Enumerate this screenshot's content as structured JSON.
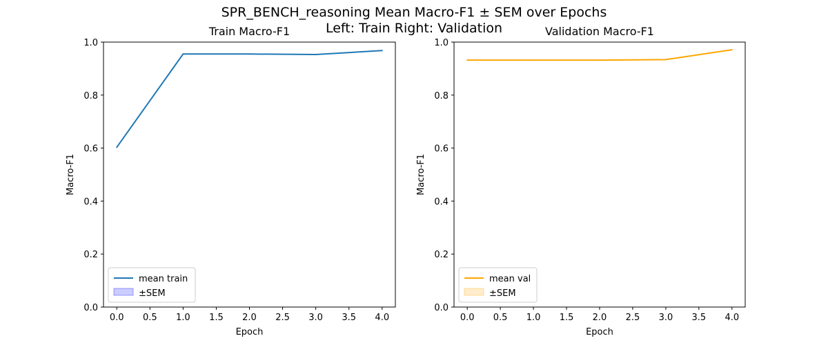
{
  "figure": {
    "suptitle_line1": "SPR_BENCH_reasoning Mean Macro-F1 ± SEM over Epochs",
    "suptitle_line2": "Left: Train  Right: Validation"
  },
  "chart_data": [
    {
      "type": "line",
      "title": "Train Macro-F1",
      "xlabel": "Epoch",
      "ylabel": "Macro-F1",
      "x": [
        0,
        1,
        2,
        3,
        4
      ],
      "xlim": [
        -0.2,
        4.2
      ],
      "ylim": [
        0,
        1.0
      ],
      "xticks": [
        0.0,
        0.5,
        1.0,
        1.5,
        2.0,
        2.5,
        3.0,
        3.5,
        4.0
      ],
      "yticks": [
        0.0,
        0.2,
        0.4,
        0.6,
        0.8,
        1.0
      ],
      "grid": false,
      "legend_position": "lower-left",
      "series": [
        {
          "name": "mean train",
          "values": [
            0.603,
            0.955,
            0.955,
            0.953,
            0.968
          ],
          "sem": [
            0,
            0,
            0,
            0,
            0
          ],
          "color": "#1f77b4",
          "band_color": "#0000ff",
          "band_label": "±SEM"
        }
      ]
    },
    {
      "type": "line",
      "title": "Validation Macro-F1",
      "xlabel": "Epoch",
      "ylabel": "Macro-F1",
      "x": [
        0,
        1,
        2,
        3,
        4
      ],
      "xlim": [
        -0.2,
        4.2
      ],
      "ylim": [
        0,
        1.0
      ],
      "xticks": [
        0.0,
        0.5,
        1.0,
        1.5,
        2.0,
        2.5,
        3.0,
        3.5,
        4.0
      ],
      "yticks": [
        0.0,
        0.2,
        0.4,
        0.6,
        0.8,
        1.0
      ],
      "grid": false,
      "legend_position": "lower-left",
      "series": [
        {
          "name": "mean val",
          "values": [
            0.932,
            0.932,
            0.932,
            0.934,
            0.971
          ],
          "sem": [
            0,
            0,
            0,
            0,
            0
          ],
          "color": "#ffa500",
          "band_color": "#ffa500",
          "band_label": "±SEM"
        }
      ]
    }
  ]
}
